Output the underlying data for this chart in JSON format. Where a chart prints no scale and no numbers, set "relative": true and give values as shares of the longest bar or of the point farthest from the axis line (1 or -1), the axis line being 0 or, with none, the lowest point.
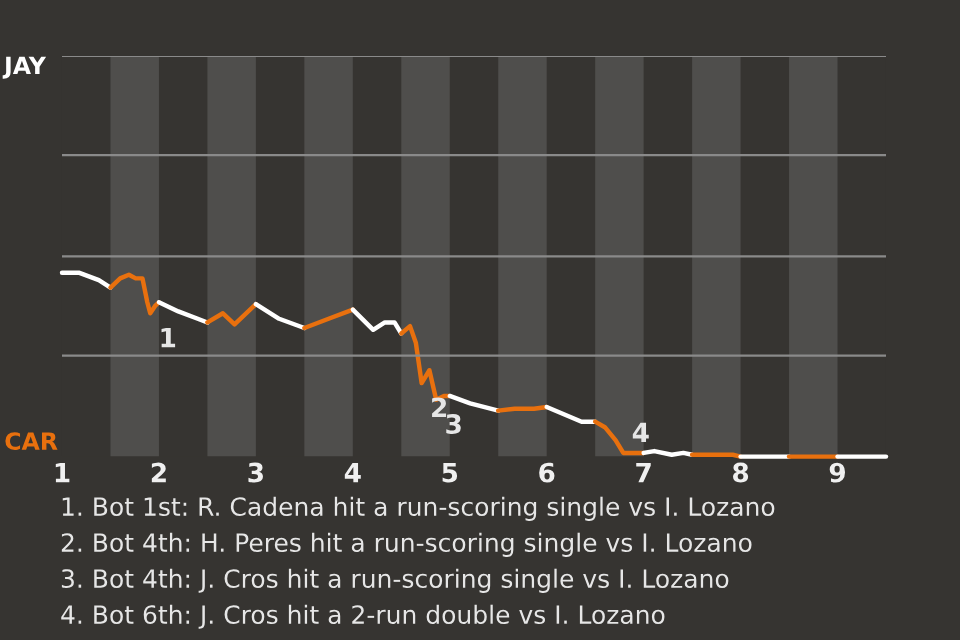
{
  "chart_data": {
    "type": "line",
    "relative": true,
    "xlim": [
      1,
      9.5
    ],
    "xticks": [
      1,
      2,
      3,
      4,
      5,
      6,
      7,
      8,
      9
    ],
    "series": [
      {
        "color": "#ffffff",
        "x": [
          1.0,
          1.18,
          1.38,
          1.5
        ],
        "values": [
          1,
          1,
          0.96,
          0.92
        ]
      },
      {
        "color": "#e8700e",
        "x": [
          1.5,
          1.6,
          1.69,
          1.76,
          1.83,
          1.88,
          1.91,
          1.96,
          2.0
        ],
        "values": [
          0.92,
          0.97,
          0.99,
          0.97,
          0.97,
          0.84,
          0.78,
          0.82,
          0.84
        ]
      },
      {
        "color": "#ffffff",
        "x": [
          2.0,
          2.2,
          2.4,
          2.5
        ],
        "values": [
          0.84,
          0.79,
          0.75,
          0.73
        ]
      },
      {
        "color": "#e8700e",
        "x": [
          2.5,
          2.66,
          2.78,
          3.0
        ],
        "values": [
          0.73,
          0.78,
          0.72,
          0.83
        ]
      },
      {
        "color": "#ffffff",
        "x": [
          3.0,
          3.24,
          3.5
        ],
        "values": [
          0.83,
          0.75,
          0.7
        ]
      },
      {
        "color": "#e8700e",
        "x": [
          3.5,
          3.75,
          4.0
        ],
        "values": [
          0.7,
          0.75,
          0.8
        ]
      },
      {
        "color": "#ffffff",
        "x": [
          4.0,
          4.21,
          4.33,
          4.43,
          4.5
        ],
        "values": [
          0.8,
          0.69,
          0.73,
          0.73,
          0.67
        ]
      },
      {
        "color": "#e8700e",
        "x": [
          4.5,
          4.59,
          4.65,
          4.71,
          4.79,
          4.86,
          4.94,
          5.0
        ],
        "values": [
          0.67,
          0.71,
          0.62,
          0.4,
          0.47,
          0.31,
          0.33,
          0.33
        ]
      },
      {
        "color": "#ffffff",
        "x": [
          5.0,
          5.21,
          5.5
        ],
        "values": [
          0.33,
          0.29,
          0.25
        ]
      },
      {
        "color": "#e8700e",
        "x": [
          5.5,
          5.67,
          5.87,
          6.0
        ],
        "values": [
          0.25,
          0.26,
          0.26,
          0.27
        ]
      },
      {
        "color": "#ffffff",
        "x": [
          6.0,
          6.36,
          6.5
        ],
        "values": [
          0.27,
          0.19,
          0.19
        ]
      },
      {
        "color": "#e8700e",
        "x": [
          6.5,
          6.6,
          6.71,
          6.79,
          7.0
        ],
        "values": [
          0.19,
          0.16,
          0.09,
          0.02,
          0.02
        ]
      },
      {
        "color": "#ffffff",
        "x": [
          7.0,
          7.11,
          7.29,
          7.41,
          7.5
        ],
        "values": [
          0.02,
          0.03,
          0.01,
          0.02,
          0.01
        ]
      },
      {
        "color": "#e8700e",
        "x": [
          7.5,
          7.92,
          8.0
        ],
        "values": [
          0.01,
          0.01,
          0
        ]
      },
      {
        "color": "#ffffff",
        "x": [
          8.0,
          8.5
        ],
        "values": [
          0,
          0
        ]
      },
      {
        "color": "#e8700e",
        "x": [
          8.5,
          9.0
        ],
        "values": [
          0,
          0
        ]
      },
      {
        "color": "#ffffff",
        "x": [
          9.0,
          9.5
        ],
        "values": [
          0,
          0
        ]
      }
    ],
    "ref_lines": [
      {
        "axis": "y",
        "value": 0.55,
        "color": "#8a8a8a"
      },
      {
        "axis": "y",
        "value": 1.09,
        "color": "#8a8a8a"
      },
      {
        "axis": "y",
        "value": 1.64,
        "color": "#8a8a8a"
      },
      {
        "axis": "y",
        "value": 2.18,
        "label": "JAY",
        "color": "#8a8a8a"
      }
    ],
    "bands": [
      {
        "axis": "x",
        "from": 1.5,
        "to": 2,
        "color": "#4f4e4c"
      },
      {
        "axis": "x",
        "from": 2.5,
        "to": 3,
        "color": "#4f4e4c"
      },
      {
        "axis": "x",
        "from": 3.5,
        "to": 4,
        "color": "#4f4e4c"
      },
      {
        "axis": "x",
        "from": 4.5,
        "to": 5,
        "color": "#4f4e4c"
      },
      {
        "axis": "x",
        "from": 5.5,
        "to": 6,
        "color": "#4f4e4c"
      },
      {
        "axis": "x",
        "from": 6.5,
        "to": 7,
        "color": "#4f4e4c"
      },
      {
        "axis": "x",
        "from": 7.5,
        "to": 8,
        "color": "#4f4e4c"
      },
      {
        "axis": "x",
        "from": 8.5,
        "to": 9,
        "color": "#4f4e4c"
      }
    ],
    "annotations": [
      "CAR",
      {
        "text": "1",
        "x": 1.91,
        "y": 0.78
      },
      {
        "text": "2",
        "x": 4.71,
        "y": 0.4
      },
      {
        "text": "3",
        "x": 4.86,
        "y": 0.31
      },
      {
        "text": "4",
        "x": 6.79,
        "y": 0.02
      },
      "1. Bot 1st: R. Cadena hit a run-scoring single vs I. Lozano",
      "2. Bot 4th: H. Peres hit a run-scoring single vs I. Lozano",
      "3. Bot 4th: J. Cros hit a run-scoring single vs I. Lozano",
      "4. Bot 6th: J. Cros hit a 2-run double vs I. Lozano"
    ]
  }
}
